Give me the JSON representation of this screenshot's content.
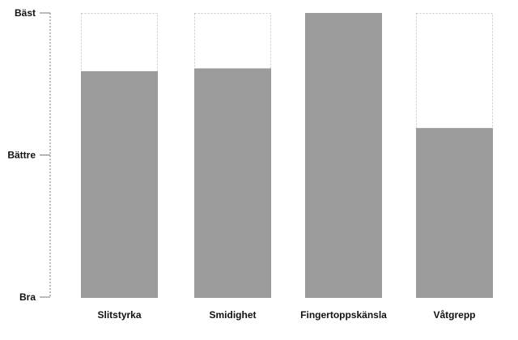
{
  "chart_data": {
    "type": "bar",
    "title": "",
    "xlabel": "",
    "ylabel": "",
    "categories": [
      "Slitstyrka",
      "Smidighet",
      "Fingertoppskänsla",
      "Våtgrepp"
    ],
    "values": [
      1.59,
      1.61,
      2.0,
      1.19
    ],
    "ylim": [
      0,
      2
    ],
    "y_ticks": [
      {
        "value": 0,
        "label": "Bra"
      },
      {
        "value": 1,
        "label": "Bättre"
      },
      {
        "value": 2,
        "label": "Bäst"
      }
    ],
    "grid": false,
    "max_outline": "dotted",
    "colors": {
      "bar": "#9b9b9b",
      "outline": "#c8c8c8",
      "axis": "#777777"
    }
  }
}
